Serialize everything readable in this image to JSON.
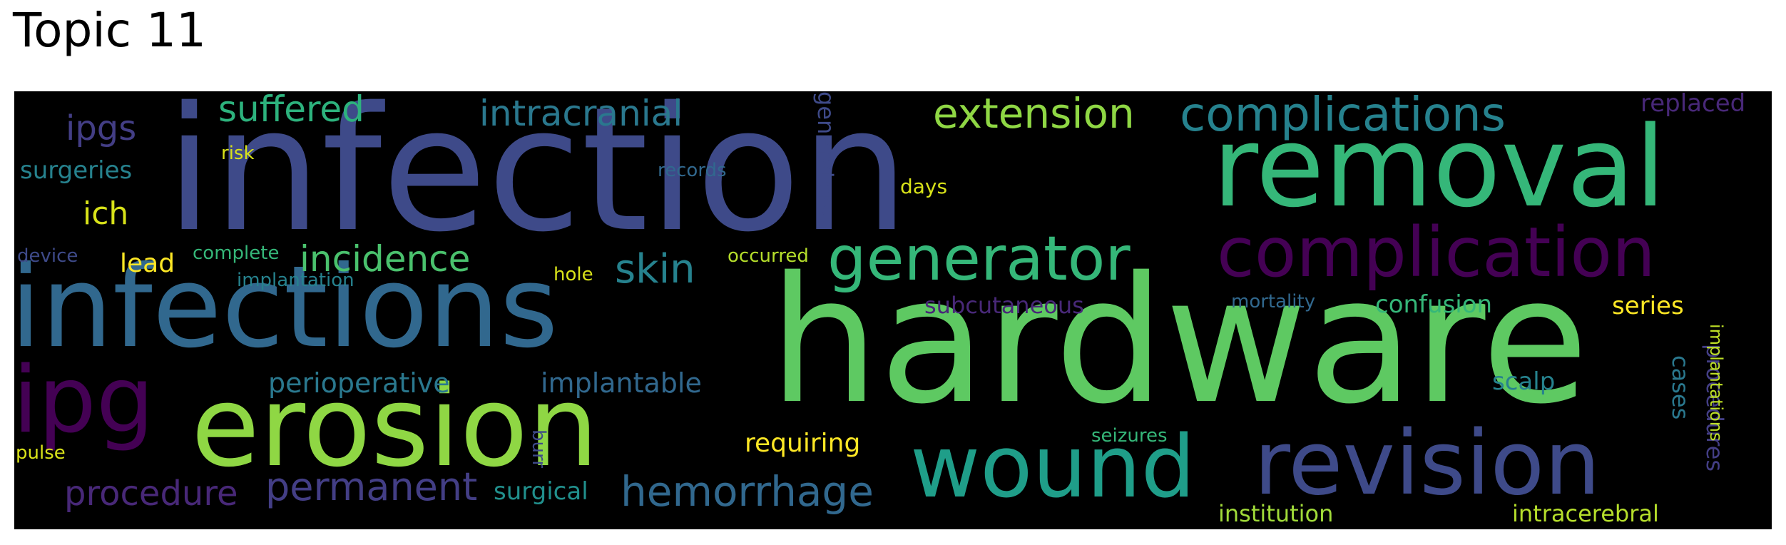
{
  "title": "Topic 11",
  "palette": {
    "dark_purple": "#440154",
    "indigo": "#3e4a89",
    "slate_blue": "#482878",
    "blue": "#31688e",
    "teal": "#26828e",
    "teal_green": "#1f9e89",
    "green": "#35b779",
    "light_green": "#6ece58",
    "lime": "#b5de2b",
    "yellow": "#fde725",
    "background": "#000000"
  },
  "words": [
    "infection",
    "hardware",
    "infections",
    "erosion",
    "removal",
    "complication",
    "wound",
    "revision",
    "ipg",
    "generator",
    "complications",
    "hemorrhage",
    "extension",
    "permanent",
    "procedure",
    "incidence",
    "intracranial",
    "suffered",
    "skin",
    "ipgs",
    "perioperative",
    "implantable",
    "requiring",
    "subcutaneous",
    "confusion",
    "institution",
    "intracerebral",
    "series",
    "procedures",
    "cases",
    "scalp",
    "surgeries",
    "ich",
    "lead",
    "generators",
    "replaced",
    "surgical",
    "implantations",
    "risk",
    "records",
    "days",
    "device",
    "complete",
    "implantation",
    "occurred",
    "hole",
    "mortality",
    "seizures",
    "burr",
    "pulse"
  ]
}
